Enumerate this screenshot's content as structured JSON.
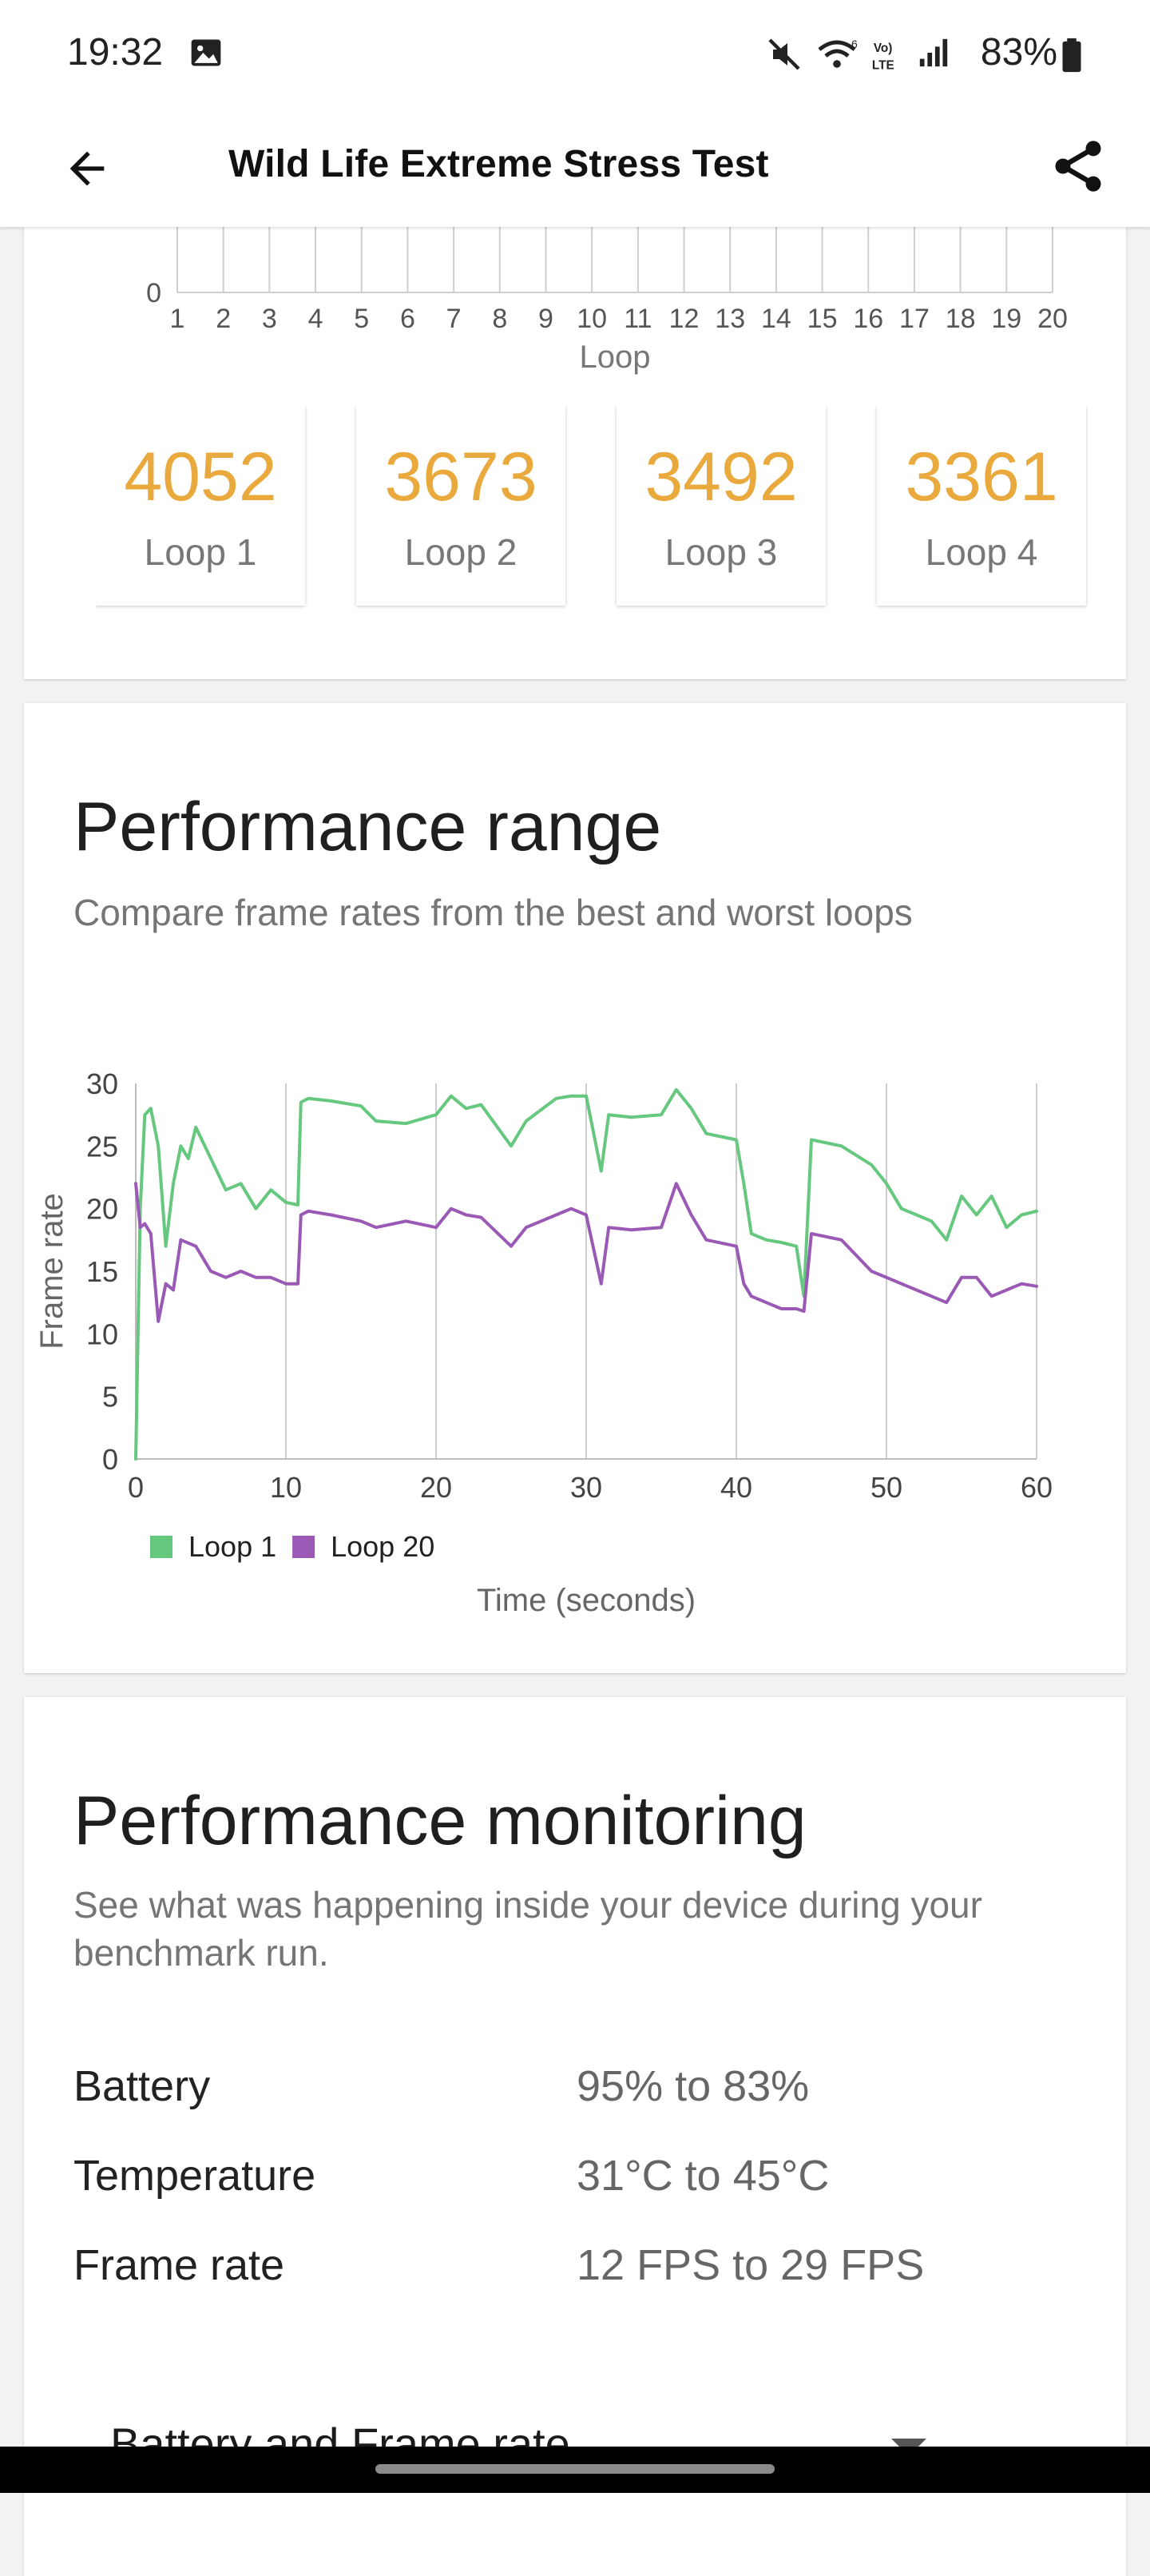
{
  "status_bar": {
    "time": "19:32",
    "battery": "83%",
    "icons": [
      "image-icon",
      "mute-icon",
      "wifi-6-icon",
      "volte-icon",
      "signal-icon",
      "battery-icon"
    ]
  },
  "app_bar": {
    "title": "Wild Life Extreme Stress Test",
    "back_icon": "arrow-left-icon",
    "share_icon": "share-icon"
  },
  "loop_chart": {
    "zero_label": "0",
    "x_ticks": [
      "1",
      "2",
      "3",
      "4",
      "5",
      "6",
      "7",
      "8",
      "9",
      "10",
      "11",
      "12",
      "13",
      "14",
      "15",
      "16",
      "17",
      "18",
      "19",
      "20"
    ],
    "x_label": "Loop"
  },
  "loops": [
    {
      "score": "4052",
      "label": "Loop 1"
    },
    {
      "score": "3673",
      "label": "Loop 2"
    },
    {
      "score": "3492",
      "label": "Loop 3"
    },
    {
      "score": "3361",
      "label": "Loop 4"
    }
  ],
  "performance_range": {
    "title": "Performance range",
    "subtitle": "Compare frame rates from the best and worst loops"
  },
  "chart_data": {
    "type": "line",
    "ylabel": "Frame rate",
    "xlabel": "Time (seconds)",
    "xlim": [
      0,
      60
    ],
    "ylim": [
      0,
      30
    ],
    "x_ticks": [
      0,
      10,
      20,
      30,
      40,
      50,
      60
    ],
    "y_ticks": [
      0,
      5,
      10,
      15,
      20,
      25,
      30
    ],
    "grid": "vertical",
    "legend": "bottom-left",
    "series": [
      {
        "name": "Loop 1",
        "color": "#66c77e",
        "x": [
          0,
          0.3,
          0.6,
          1,
          1.5,
          2,
          2.5,
          3,
          3.5,
          4,
          5,
          6,
          7,
          8,
          9,
          10,
          10.8,
          11,
          11.5,
          13,
          15,
          16,
          18,
          20,
          21,
          22,
          23,
          25,
          26,
          28,
          29,
          30,
          31,
          31.5,
          33,
          35,
          36,
          37,
          38,
          40,
          40.5,
          41,
          42,
          43,
          44,
          44.5,
          45,
          47,
          49,
          50,
          51,
          53,
          54,
          55,
          56,
          57,
          58,
          59,
          60
        ],
        "y": [
          0,
          20,
          27.5,
          28,
          25,
          17,
          22,
          25,
          24,
          26.5,
          24,
          21.5,
          22,
          20,
          21.5,
          20.5,
          20.3,
          28.5,
          28.8,
          28.6,
          28.2,
          27,
          26.8,
          27.5,
          29,
          28,
          28.3,
          25,
          27,
          28.8,
          29,
          29,
          23,
          27.5,
          27.3,
          27.5,
          29.5,
          28,
          26,
          25.5,
          22,
          18,
          17.5,
          17.3,
          17,
          13,
          25.5,
          25,
          23.5,
          22,
          20,
          19,
          17.5,
          21,
          19.5,
          21,
          18.5,
          19.5,
          19.8
        ]
      },
      {
        "name": "Loop 20",
        "color": "#9b59b6",
        "x": [
          0,
          0.3,
          0.6,
          1,
          1.5,
          2,
          2.5,
          3,
          4,
          5,
          6,
          7,
          8,
          9,
          10,
          10.8,
          11,
          11.5,
          13,
          15,
          16,
          18,
          20,
          21,
          22,
          23,
          25,
          26,
          28,
          29,
          30,
          31,
          31.5,
          33,
          35,
          36,
          37,
          38,
          40,
          40.5,
          41,
          42,
          43,
          44,
          44.5,
          45,
          47,
          49,
          50,
          51,
          53,
          54,
          55,
          56,
          57,
          58,
          59,
          60
        ],
        "y": [
          22,
          18.5,
          18.8,
          18,
          11,
          14,
          13.5,
          17.5,
          17,
          15,
          14.5,
          15,
          14.5,
          14.5,
          14,
          14,
          19.5,
          19.8,
          19.5,
          19,
          18.5,
          19,
          18.5,
          20,
          19.5,
          19.3,
          17,
          18.5,
          19.5,
          20,
          19.5,
          14,
          18.5,
          18.3,
          18.5,
          22,
          19.5,
          17.5,
          17,
          14,
          13,
          12.5,
          12,
          12,
          11.8,
          18,
          17.5,
          15,
          14.5,
          14,
          13,
          12.5,
          14.5,
          14.5,
          13,
          13.5,
          14,
          13.8
        ]
      }
    ]
  },
  "performance_monitoring": {
    "title": "Performance monitoring",
    "subtitle": "See what was happening inside your device during your benchmark run.",
    "stats": [
      {
        "label": "Battery",
        "value": "95% to 83%"
      },
      {
        "label": "Temperature",
        "value": "31°C to 45°C"
      },
      {
        "label": "Frame rate",
        "value": "12 FPS to 29 FPS"
      }
    ],
    "dropdown_selected": "Battery and Frame rate",
    "dropdown_icon": "caret-down-icon"
  }
}
